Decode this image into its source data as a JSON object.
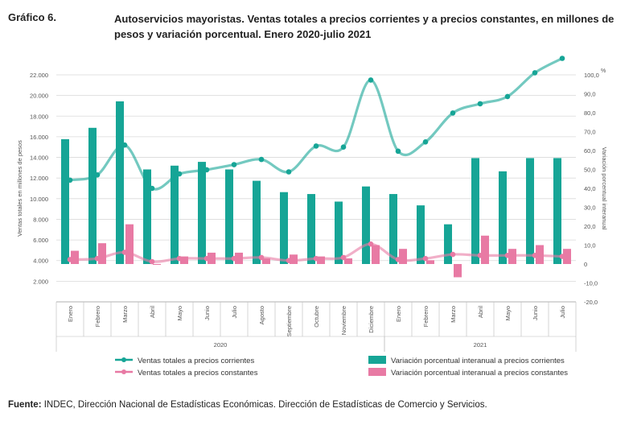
{
  "header": {
    "label": "Gráfico 6.",
    "title": "Autoservicios mayoristas. Ventas totales a precios corrientes y a precios constantes, en millones de pesos y variación porcentual. Enero 2020-julio 2021"
  },
  "source": {
    "prefix": "Fuente:",
    "text": " INDEC, Dirección Nacional de Estadísticas Económicas. Dirección de Estadísticas de Comercio y Servicios."
  },
  "colors": {
    "teal": "#16a596",
    "pink": "#e87aa4",
    "grid": "#d9d9d9",
    "axis_text": "#555555"
  },
  "chart_data": {
    "type": "bar+line",
    "categories": [
      "Enero",
      "Febrero",
      "Marzo",
      "Abril",
      "Mayo",
      "Junio",
      "Julio",
      "Agosto",
      "Septiembre",
      "Octubre",
      "Noviembre",
      "Diciembre",
      "Enero",
      "Febrero",
      "Marzo",
      "Abril",
      "Mayo",
      "Junio",
      "Julio"
    ],
    "year_groups": [
      {
        "label": "2020",
        "start": 0,
        "end": 11
      },
      {
        "label": "2021",
        "start": 12,
        "end": 18
      }
    ],
    "ylabel": "Ventas totales en millones de pesos",
    "y2label": "Variación porcentual interanual",
    "y2unit": "%",
    "ylim": [
      0,
      22000
    ],
    "y_ticks": [
      "2.000",
      "4.000",
      "6.000",
      "8.000",
      "10.000",
      "12.000",
      "14.000",
      "16.000",
      "18.000",
      "20.000",
      "22.000"
    ],
    "y_tick_values": [
      2000,
      4000,
      6000,
      8000,
      10000,
      12000,
      14000,
      16000,
      18000,
      20000,
      22000
    ],
    "y2lim": [
      -20,
      100
    ],
    "y2_ticks": [
      "-20,0",
      "-10,0",
      "0",
      "10,0",
      "20,0",
      "30,0",
      "40,0",
      "50,0",
      "60,0",
      "70,0",
      "80,0",
      "90,0",
      "100,0"
    ],
    "y2_tick_values": [
      -20,
      -10,
      0,
      10,
      20,
      30,
      40,
      50,
      60,
      70,
      80,
      90,
      100
    ],
    "series": [
      {
        "name": "Ventas totales a precios corrientes",
        "kind": "line",
        "axis": "left",
        "color": "#16a596",
        "values": [
          11800,
          12300,
          15200,
          11000,
          12400,
          12800,
          13300,
          13800,
          12600,
          15100,
          15000,
          21500,
          14600,
          15500,
          18300,
          19200,
          19900,
          22200,
          23600
        ]
      },
      {
        "name": "Ventas totales a precios constantes",
        "kind": "line",
        "axis": "left",
        "color": "#e87aa4",
        "values": [
          4100,
          4200,
          4800,
          3900,
          4200,
          4200,
          4200,
          4300,
          4000,
          4200,
          4300,
          5600,
          4100,
          4200,
          4600,
          4500,
          4500,
          4500,
          4400
        ]
      },
      {
        "name": "Variación porcentual interanual a precios corrientes",
        "kind": "bar",
        "axis": "right",
        "color": "#16a596",
        "values": [
          66,
          72,
          86,
          50,
          52,
          54,
          50,
          44,
          38,
          37,
          33,
          41,
          37,
          31,
          21,
          56,
          49,
          56,
          56
        ]
      },
      {
        "name": "Variación porcentual interanual a precios constantes",
        "kind": "bar",
        "axis": "right",
        "color": "#e87aa4",
        "values": [
          7,
          11,
          21,
          0,
          4,
          6,
          6,
          3,
          5,
          4,
          3,
          10,
          8,
          2,
          -7,
          15,
          8,
          10,
          8
        ]
      }
    ],
    "legend": [
      {
        "label": "Ventas totales a precios corrientes",
        "symbol": "line",
        "color": "#16a596"
      },
      {
        "label": "Variación porcentual interanual a precios corrientes",
        "symbol": "bar",
        "color": "#16a596"
      },
      {
        "label": "Ventas totales a precios constantes",
        "symbol": "line",
        "color": "#e87aa4"
      },
      {
        "label": "Variación porcentual interanual a precios constantes",
        "symbol": "bar",
        "color": "#e87aa4"
      }
    ],
    "legend_placement": "bottom",
    "grid": true
  }
}
